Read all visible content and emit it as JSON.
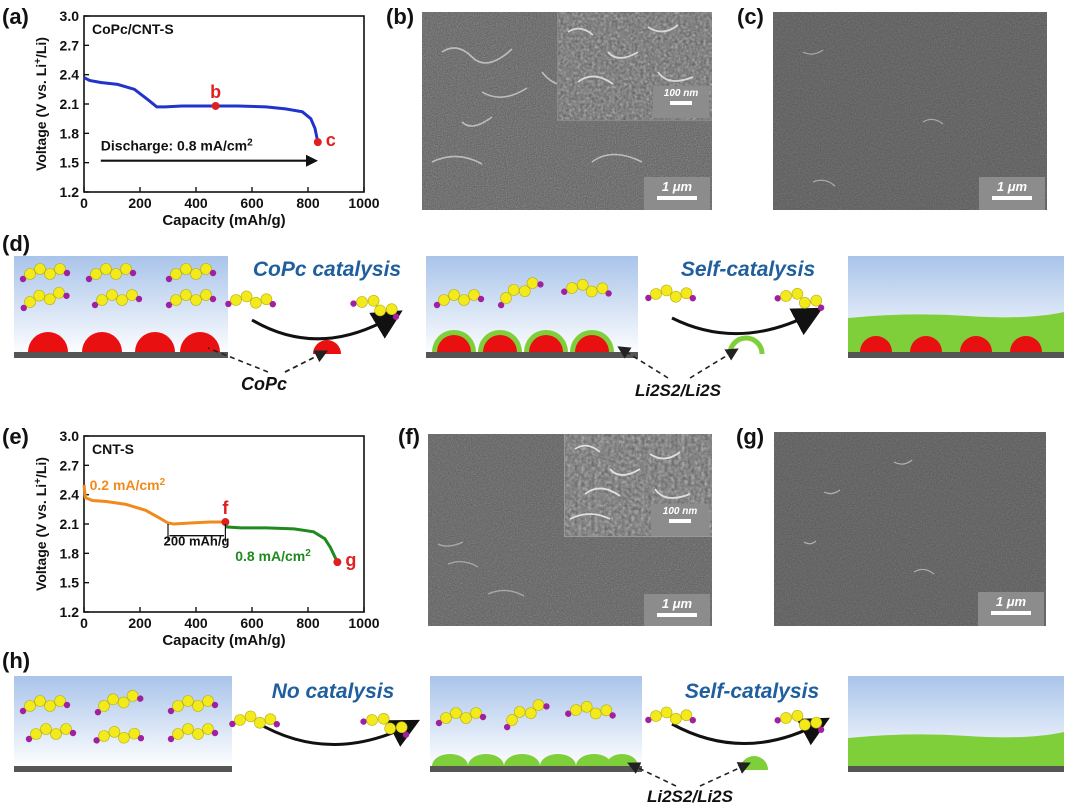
{
  "panels": {
    "a": "(a)",
    "b": "(b)",
    "c": "(c)",
    "d": "(d)",
    "e": "(e)",
    "f": "(f)",
    "g": "(g)",
    "h": "(h)"
  },
  "sem": {
    "scale_1um": "1 μm",
    "scale_100nm": "100 nm"
  },
  "scheme_d": {
    "arrow1": "CoPc catalysis",
    "arrow2": "Self-catalysis",
    "label_copc": "CoPc",
    "label_li2s": "Li2S2/Li2S"
  },
  "scheme_h": {
    "arrow1": "No catalysis",
    "arrow2": "Self-catalysis",
    "label_li2s": "Li2S2/Li2S"
  },
  "colors": {
    "blue_curve": "#2233cc",
    "orange_curve": "#f08a1c",
    "green_curve": "#1f8a1f",
    "point_red": "#e02020",
    "title_blue": "#1f5f9e",
    "sulfur": "#f2ea1a",
    "lithium": "#a020a0",
    "film_green": "#7fcf3a",
    "copc_red": "#e81010"
  },
  "chart_data": [
    {
      "type": "line",
      "title": "CoPc/CNT-S",
      "xlabel": "Capacity (mAh/g)",
      "ylabel": "Voltage (V vs. Li+/Li)",
      "xlim": [
        0,
        1000
      ],
      "ylim": [
        1.2,
        3.0
      ],
      "xticks": [
        0,
        200,
        400,
        600,
        800,
        1000
      ],
      "yticks": [
        1.2,
        1.5,
        1.8,
        2.1,
        2.4,
        2.7,
        3.0
      ],
      "series": [
        {
          "color": "#2233cc",
          "x": [
            0,
            20,
            60,
            120,
            180,
            230,
            260,
            290,
            350,
            450,
            550,
            650,
            720,
            780,
            810,
            825,
            835
          ],
          "y": [
            2.37,
            2.34,
            2.32,
            2.3,
            2.25,
            2.14,
            2.07,
            2.07,
            2.08,
            2.08,
            2.08,
            2.07,
            2.05,
            2.02,
            1.95,
            1.85,
            1.71
          ]
        }
      ],
      "points": [
        {
          "label": "b",
          "x": 470,
          "y": 2.08
        },
        {
          "label": "c",
          "x": 835,
          "y": 1.71
        }
      ],
      "annotation": "Discharge: 0.8 mA/cm²"
    },
    {
      "type": "line",
      "title": "CNT-S",
      "xlabel": "Capacity (mAh/g)",
      "ylabel": "Voltage (V vs. Li+/Li)",
      "xlim": [
        0,
        1000
      ],
      "ylim": [
        1.2,
        3.0
      ],
      "xticks": [
        0,
        200,
        400,
        600,
        800,
        1000
      ],
      "yticks": [
        1.2,
        1.5,
        1.8,
        2.1,
        2.4,
        2.7,
        3.0
      ],
      "series": [
        {
          "name": "0.2 mA/cm²",
          "color": "#f08a1c",
          "x": [
            0,
            5,
            30,
            80,
            150,
            220,
            270,
            300,
            320,
            380,
            450,
            505
          ],
          "y": [
            2.5,
            2.37,
            2.34,
            2.33,
            2.3,
            2.24,
            2.16,
            2.11,
            2.1,
            2.11,
            2.12,
            2.12
          ]
        },
        {
          "name": "0.8 mA/cm²",
          "color": "#1f8a1f",
          "x": [
            505,
            560,
            650,
            750,
            820,
            860,
            880,
            895,
            905
          ],
          "y": [
            2.07,
            2.06,
            2.06,
            2.05,
            2.02,
            1.95,
            1.86,
            1.77,
            1.71
          ]
        }
      ],
      "points": [
        {
          "label": "f",
          "x": 505,
          "y": 2.12
        },
        {
          "label": "g",
          "x": 905,
          "y": 1.71
        }
      ],
      "annotation": "200 mAh/g"
    }
  ]
}
